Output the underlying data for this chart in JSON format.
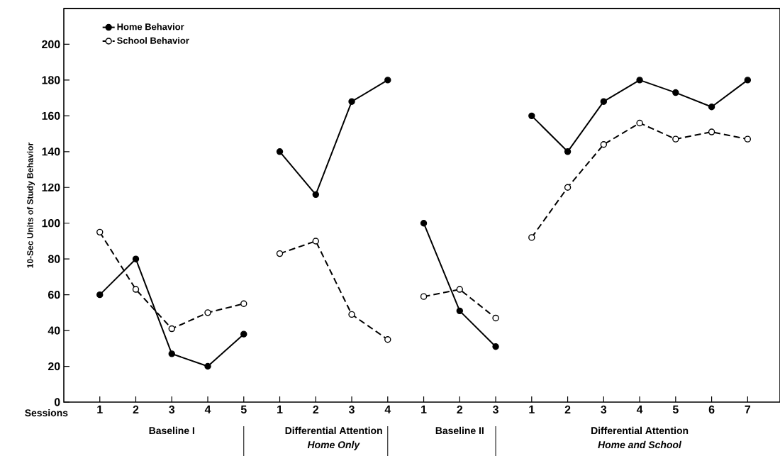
{
  "chart_data": {
    "type": "line",
    "ylabel": "10-Sec Units of Study Behavior",
    "xlabel": "Sessions",
    "categories": [
      "1",
      "2",
      "3",
      "4",
      "5",
      "1",
      "2",
      "3",
      "4",
      "1",
      "2",
      "3",
      "1",
      "2",
      "3",
      "4",
      "5",
      "6",
      "7"
    ],
    "annotations": [
      "Baseline I",
      "Differential Attention",
      "*Home Only*",
      "Baseline II",
      "Differential Attention",
      "*Home and School*"
    ],
    "ylim": [
      0,
      220
    ],
    "yticks": [
      0,
      20,
      40,
      60,
      80,
      100,
      120,
      140,
      160,
      180,
      200
    ],
    "legend": "top left",
    "grid": false,
    "marker": "circle",
    "series": [
      {
        "name": "Home Behavior",
        "color": "#000000",
        "line_style": "solid",
        "values": [
          60,
          80,
          27,
          20,
          38,
          null,
          null,
          null,
          null,
          null,
          null,
          null,
          null,
          null,
          null,
          null,
          null,
          null,
          null
        ]
      },
      {
        "name": "School Behavior",
        "color": "#000000",
        "line_style": "dashed",
        "values": [
          95,
          63,
          41,
          50,
          55,
          null,
          null,
          null,
          null,
          null,
          null,
          null,
          null,
          null,
          null,
          null,
          null,
          null,
          null
        ]
      },
      {
        "color": "#000000",
        "line_style": "solid",
        "values": [
          null,
          null,
          null,
          null,
          null,
          140,
          116,
          168,
          180,
          null,
          null,
          null,
          null,
          null,
          null,
          null,
          null,
          null,
          null
        ]
      },
      {
        "color": "#000000",
        "line_style": "dashed",
        "values": [
          null,
          null,
          null,
          null,
          null,
          83,
          90,
          49,
          35,
          null,
          null,
          null,
          null,
          null,
          null,
          null,
          null,
          null,
          null
        ]
      },
      {
        "color": "#000000",
        "line_style": "solid",
        "values": [
          null,
          null,
          null,
          null,
          null,
          null,
          null,
          null,
          null,
          100,
          51,
          31,
          null,
          null,
          null,
          null,
          null,
          null,
          null
        ]
      },
      {
        "color": "#000000",
        "line_style": "dashed",
        "values": [
          null,
          null,
          null,
          null,
          null,
          null,
          null,
          null,
          null,
          59,
          63,
          47,
          null,
          null,
          null,
          null,
          null,
          null,
          null
        ]
      },
      {
        "color": "#000000",
        "line_style": "solid",
        "values": [
          null,
          null,
          null,
          null,
          null,
          null,
          null,
          null,
          null,
          null,
          null,
          null,
          160,
          140,
          168,
          180,
          173,
          165,
          180
        ]
      },
      {
        "color": "#000000",
        "line_style": "dashed",
        "values": [
          null,
          null,
          null,
          null,
          null,
          null,
          null,
          null,
          null,
          null,
          null,
          null,
          92,
          120,
          144,
          156,
          147,
          151,
          147
        ]
      }
    ]
  }
}
